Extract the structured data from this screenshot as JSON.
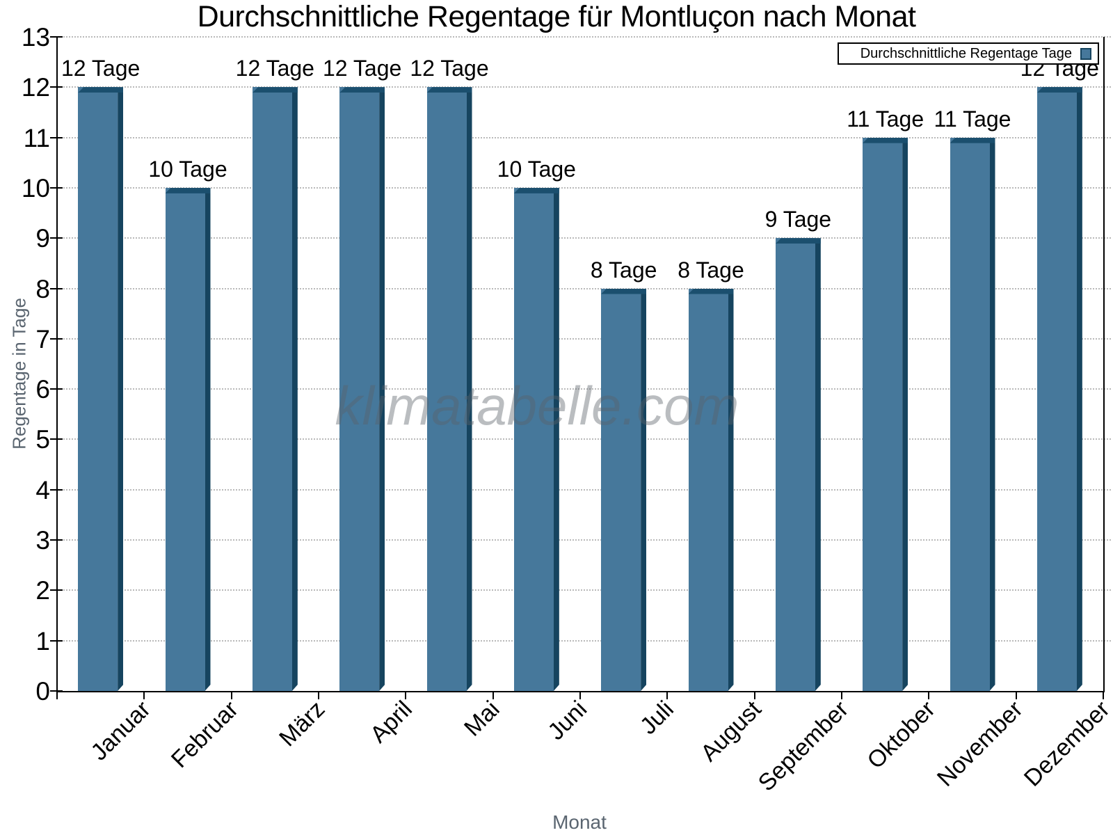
{
  "title": "Durchschnittliche Regentage für Montluçon nach Monat",
  "legend": {
    "label": "Durchschnittliche Regentage Tage"
  },
  "watermark": "klimatabelle.com",
  "axes": {
    "x_title": "Monat",
    "y_title": "Regentage in Tage"
  },
  "chart_data": {
    "type": "bar",
    "title": "Durchschnittliche Regentage für Montluçon nach Monat",
    "categories": [
      "Januar",
      "Februar",
      "März",
      "April",
      "Mai",
      "Juni",
      "Juli",
      "August",
      "September",
      "Oktober",
      "November",
      "Dezember"
    ],
    "values": [
      12,
      10,
      12,
      12,
      12,
      10,
      8,
      8,
      9,
      11,
      11,
      12
    ],
    "bar_labels": [
      "12 Tage",
      "10 Tage",
      "12 Tage",
      "12 Tage",
      "12 Tage",
      "10 Tage",
      "8 Tage",
      "8 Tage",
      "9 Tage",
      "11 Tage",
      "11 Tage",
      "12 Tage"
    ],
    "xlabel": "Monat",
    "ylabel": "Regentage in Tage",
    "ylim": [
      0,
      13
    ],
    "y_ticks": [
      0,
      1,
      2,
      3,
      4,
      5,
      6,
      7,
      8,
      9,
      10,
      11,
      12,
      13
    ],
    "grid": true,
    "x_tick_label_rotation": -45,
    "legend": [
      "Durchschnittliche Regentage Tage"
    ],
    "legend_position": "top-right",
    "colors": {
      "bar_fill": "#46789b",
      "bar_side": "#16445f",
      "bar_cap": "#1b4f6e",
      "grid": "#b9b9b9",
      "axis": "#000000",
      "axis_title": "#5a6570",
      "watermark_gray": "#a9a9a9"
    }
  }
}
